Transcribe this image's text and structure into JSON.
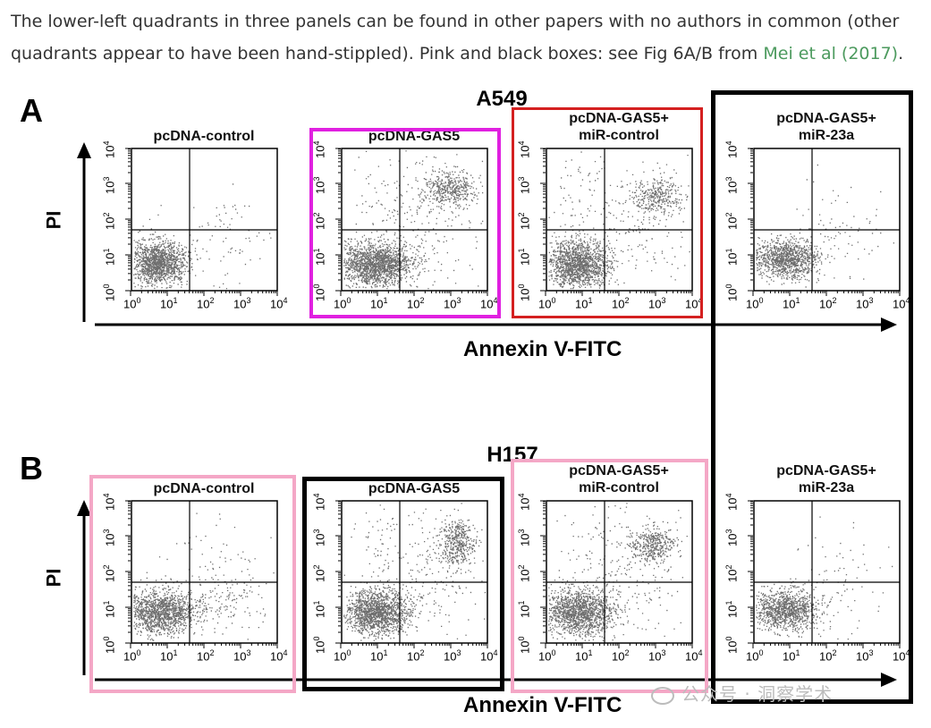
{
  "caption": {
    "text": "The lower-left quadrants in three panels can be found in other papers with no authors in common (other quadrants appear to have been hand-stippled). Pink and black boxes: see Fig 6A/B from ",
    "link": "Mei et al (2017)",
    "end": "."
  },
  "panels": [
    {
      "letter": "A",
      "cell_line": "A549",
      "x_label": "Annexin V-FITC",
      "y_label": "PI",
      "plots": [
        {
          "title": "pcDNA-control"
        },
        {
          "title": "pcDNA-GAS5"
        },
        {
          "title": "pcDNA-GAS5+\nmiR-control"
        },
        {
          "title": "pcDNA-GAS5+\nmiR-23a"
        }
      ]
    },
    {
      "letter": "B",
      "cell_line": "H157",
      "x_label": "Annexin V-FITC",
      "y_label": "PI",
      "plots": [
        {
          "title": "pcDNA-control"
        },
        {
          "title": "pcDNA-GAS5"
        },
        {
          "title": "pcDNA-GAS5+\nmiR-control"
        },
        {
          "title": "pcDNA-GAS5+\nmiR-23a"
        }
      ]
    }
  ],
  "ticks": [
    "10",
    "10",
    "10",
    "10",
    "10"
  ],
  "tick_exponents": [
    "0",
    "1",
    "2",
    "3",
    "4"
  ],
  "highlight_colors": {
    "magenta": "#e020e0",
    "red": "#d42020",
    "pink": "#f4a7c6",
    "black": "#000000"
  },
  "watermark": "公众号 · 洞察学术"
}
